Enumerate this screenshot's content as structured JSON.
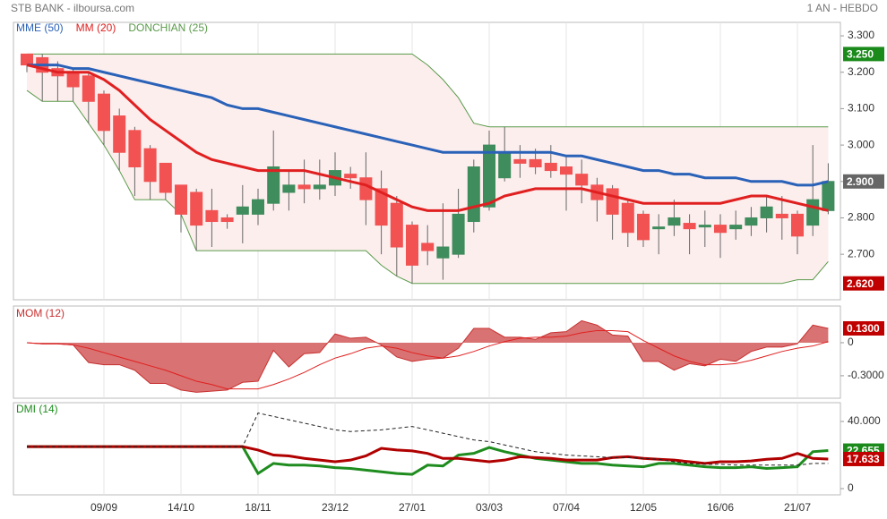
{
  "chart_data": [
    {
      "type": "candlestick",
      "title": "STB BANK - ilboursa.com",
      "subtitle": "1 AN - HEBDO",
      "categories": [
        null,
        null,
        null,
        null,
        null,
        "09/09",
        null,
        null,
        null,
        null,
        "14/10",
        null,
        null,
        null,
        null,
        "18/11",
        null,
        null,
        null,
        null,
        "23/12",
        null,
        null,
        null,
        null,
        "27/01",
        null,
        null,
        null,
        null,
        "03/03",
        null,
        null,
        null,
        null,
        "07/04",
        null,
        null,
        null,
        null,
        "12/05",
        null,
        null,
        null,
        null,
        "16/06",
        null,
        null,
        null,
        null,
        "21/07",
        null,
        null
      ],
      "open": [
        3.25,
        3.24,
        3.21,
        3.2,
        3.19,
        3.14,
        3.08,
        3.04,
        2.99,
        2.95,
        2.89,
        2.87,
        2.82,
        2.8,
        2.81,
        2.81,
        2.84,
        2.87,
        2.89,
        2.88,
        2.89,
        2.92,
        2.91,
        2.88,
        2.84,
        2.78,
        2.73,
        2.69,
        2.7,
        2.79,
        2.83,
        2.91,
        2.96,
        2.96,
        2.95,
        2.94,
        2.92,
        2.89,
        2.88,
        2.84,
        2.81,
        2.77,
        2.78,
        2.785,
        2.775,
        2.78,
        2.77,
        2.78,
        2.8,
        2.81,
        2.81,
        2.78,
        2.82
      ],
      "high": [
        3.25,
        3.25,
        3.23,
        3.21,
        3.2,
        3.15,
        3.1,
        3.05,
        3.0,
        2.95,
        2.89,
        2.88,
        2.88,
        2.81,
        2.89,
        2.88,
        3.04,
        2.93,
        2.96,
        2.96,
        2.98,
        2.94,
        2.98,
        2.93,
        2.86,
        2.79,
        2.78,
        2.84,
        2.88,
        2.96,
        3.04,
        3.05,
        3.0,
        2.99,
        3.0,
        2.97,
        2.96,
        2.91,
        2.89,
        2.85,
        2.82,
        2.81,
        2.85,
        2.81,
        2.82,
        2.81,
        2.82,
        2.83,
        2.86,
        2.86,
        2.82,
        3.0,
        2.95
      ],
      "low": [
        3.2,
        3.12,
        3.12,
        3.12,
        3.06,
        3.0,
        2.93,
        2.86,
        2.85,
        2.85,
        2.76,
        2.71,
        2.72,
        2.77,
        2.73,
        2.78,
        2.82,
        2.82,
        2.84,
        2.85,
        2.86,
        2.88,
        2.78,
        2.7,
        2.64,
        2.62,
        2.67,
        2.63,
        2.69,
        2.76,
        2.82,
        2.9,
        2.91,
        2.92,
        2.91,
        2.82,
        2.84,
        2.79,
        2.74,
        2.72,
        2.72,
        2.7,
        2.75,
        2.7,
        2.72,
        2.69,
        2.74,
        2.75,
        2.76,
        2.74,
        2.7,
        2.75,
        2.81
      ],
      "close": [
        3.22,
        3.2,
        3.19,
        3.16,
        3.12,
        3.04,
        2.98,
        2.94,
        2.9,
        2.87,
        2.81,
        2.78,
        2.79,
        2.79,
        2.83,
        2.85,
        2.94,
        2.89,
        2.88,
        2.89,
        2.93,
        2.91,
        2.85,
        2.78,
        2.72,
        2.67,
        2.71,
        2.72,
        2.81,
        2.94,
        3.0,
        2.98,
        2.95,
        2.94,
        2.93,
        2.92,
        2.89,
        2.85,
        2.81,
        2.76,
        2.74,
        2.775,
        2.8,
        2.77,
        2.78,
        2.76,
        2.78,
        2.8,
        2.83,
        2.8,
        2.75,
        2.85,
        2.9
      ],
      "up_color": "#3f8c5c",
      "down_color": "#f25252",
      "series": [
        {
          "name": "MME (50)",
          "color": "#2a62b8",
          "values": [
            3.22,
            3.22,
            3.22,
            3.21,
            3.21,
            3.2,
            3.19,
            3.18,
            3.17,
            3.16,
            3.15,
            3.14,
            3.13,
            3.11,
            3.1,
            3.1,
            3.09,
            3.08,
            3.07,
            3.06,
            3.05,
            3.04,
            3.03,
            3.02,
            3.01,
            3.0,
            2.99,
            2.98,
            2.98,
            2.98,
            2.98,
            2.98,
            2.98,
            2.98,
            2.98,
            2.97,
            2.97,
            2.96,
            2.95,
            2.94,
            2.93,
            2.93,
            2.92,
            2.92,
            2.91,
            2.91,
            2.91,
            2.9,
            2.9,
            2.9,
            2.89,
            2.89,
            2.9
          ]
        },
        {
          "name": "MM (20)",
          "color": "#e02020",
          "values": [
            3.22,
            3.21,
            3.2,
            3.2,
            3.2,
            3.18,
            3.15,
            3.11,
            3.07,
            3.04,
            3.01,
            2.98,
            2.96,
            2.95,
            2.94,
            2.93,
            2.93,
            2.93,
            2.93,
            2.92,
            2.91,
            2.9,
            2.89,
            2.87,
            2.85,
            2.83,
            2.82,
            2.82,
            2.82,
            2.83,
            2.84,
            2.86,
            2.87,
            2.88,
            2.88,
            2.88,
            2.88,
            2.87,
            2.86,
            2.85,
            2.84,
            2.84,
            2.84,
            2.84,
            2.84,
            2.84,
            2.85,
            2.86,
            2.86,
            2.85,
            2.84,
            2.83,
            2.82
          ]
        },
        {
          "name": "DONCHIAN (25)",
          "color": "#5a9a4a",
          "fill": "#fdeeee",
          "upper": [
            3.25,
            3.25,
            3.25,
            3.25,
            3.25,
            3.25,
            3.25,
            3.25,
            3.25,
            3.25,
            3.25,
            3.25,
            3.25,
            3.25,
            3.25,
            3.25,
            3.25,
            3.25,
            3.25,
            3.25,
            3.25,
            3.25,
            3.25,
            3.25,
            3.25,
            3.25,
            3.22,
            3.18,
            3.13,
            3.06,
            3.05,
            3.05,
            3.05,
            3.05,
            3.05,
            3.05,
            3.05,
            3.05,
            3.05,
            3.05,
            3.05,
            3.05,
            3.05,
            3.05,
            3.05,
            3.05,
            3.05,
            3.05,
            3.05,
            3.05,
            3.05,
            3.05,
            3.05
          ],
          "lower": [
            3.15,
            3.12,
            3.12,
            3.12,
            3.06,
            3.0,
            2.93,
            2.85,
            2.85,
            2.85,
            2.81,
            2.71,
            2.71,
            2.71,
            2.71,
            2.71,
            2.71,
            2.71,
            2.71,
            2.71,
            2.71,
            2.71,
            2.71,
            2.67,
            2.64,
            2.62,
            2.62,
            2.62,
            2.62,
            2.62,
            2.62,
            2.62,
            2.62,
            2.62,
            2.62,
            2.62,
            2.62,
            2.62,
            2.62,
            2.62,
            2.62,
            2.62,
            2.62,
            2.62,
            2.62,
            2.62,
            2.62,
            2.62,
            2.62,
            2.62,
            2.63,
            2.63,
            2.68
          ]
        }
      ],
      "ylim": [
        2.575,
        3.337
      ],
      "yticks": [
        {
          "value": 3.3,
          "label": "3.300"
        },
        {
          "value": 3.2,
          "label": "3.200"
        },
        {
          "value": 3.1,
          "label": "3.100"
        },
        {
          "value": 3.0,
          "label": "3.000"
        },
        {
          "value": 2.9,
          "label": "2.900"
        },
        {
          "value": 2.8,
          "label": "2.800"
        },
        {
          "value": 2.7,
          "label": "2.700"
        }
      ],
      "last_labels": [
        {
          "value": 3.25,
          "label": "3.250",
          "color": "#1a8a1a"
        },
        {
          "value": 2.9,
          "label": "2.900",
          "color": "#666666"
        },
        {
          "value": 2.62,
          "label": "2.620",
          "color": "#c00000"
        }
      ]
    },
    {
      "type": "area",
      "title": "MOM (12)",
      "series": [
        {
          "color": "#c83030",
          "fill": "#d97272",
          "values": [
            0,
            -0.01,
            -0.01,
            -0.02,
            -0.18,
            -0.2,
            -0.2,
            -0.25,
            -0.37,
            -0.37,
            -0.43,
            -0.45,
            -0.44,
            -0.43,
            -0.36,
            -0.35,
            -0.07,
            -0.22,
            -0.1,
            -0.09,
            0.08,
            0.04,
            0.05,
            -0.02,
            -0.13,
            -0.17,
            -0.15,
            -0.14,
            -0.05,
            0.13,
            0.13,
            0.05,
            0.05,
            0.03,
            0.09,
            0.1,
            0.2,
            0.16,
            0.07,
            0.06,
            -0.17,
            -0.17,
            -0.25,
            -0.19,
            -0.21,
            -0.15,
            -0.17,
            -0.08,
            -0.04,
            -0.04,
            -0.01,
            0.16,
            0.13
          ]
        },
        {
          "color": "#e02020",
          "values": [
            0,
            -0.01,
            -0.01,
            -0.02,
            -0.05,
            -0.09,
            -0.13,
            -0.17,
            -0.21,
            -0.25,
            -0.3,
            -0.35,
            -0.38,
            -0.42,
            -0.42,
            -0.42,
            -0.38,
            -0.33,
            -0.27,
            -0.2,
            -0.14,
            -0.1,
            -0.05,
            -0.03,
            -0.05,
            -0.09,
            -0.12,
            -0.14,
            -0.12,
            -0.08,
            -0.03,
            0.01,
            0.04,
            0.05,
            0.05,
            0.06,
            0.09,
            0.11,
            0.11,
            0.1,
            0.02,
            -0.05,
            -0.12,
            -0.17,
            -0.2,
            -0.2,
            -0.19,
            -0.16,
            -0.12,
            -0.08,
            -0.05,
            -0.03,
            0.01
          ]
        }
      ],
      "ylim": [
        -0.504,
        0.333
      ],
      "yticks": [
        0,
        {
          "value": -0.3,
          "label": "-0.3000"
        }
      ],
      "last_labels": [
        {
          "value": 0.13,
          "label": "0.1300",
          "color": "#c00000"
        }
      ]
    },
    {
      "type": "line",
      "title": "DMI (14)",
      "series": [
        {
          "color": "#1e8c1e",
          "values": [
            25,
            25,
            25,
            25,
            25,
            25,
            25,
            25,
            25,
            25,
            25,
            25,
            25,
            25,
            25,
            9,
            15,
            14,
            14,
            13.5,
            12.5,
            12,
            11,
            10,
            9,
            8.5,
            14,
            13.5,
            20,
            21,
            24.5,
            22,
            20,
            18,
            17,
            16,
            15,
            15,
            14,
            13.5,
            13,
            15,
            15,
            14,
            13,
            12.5,
            12.5,
            13,
            12,
            12.5,
            13,
            22,
            22.655
          ]
        },
        {
          "color": "#b00000",
          "values": [
            25,
            25,
            25,
            25,
            25,
            25,
            25,
            25,
            25,
            25,
            25,
            25,
            25,
            25,
            25,
            23,
            20,
            19.5,
            18,
            17,
            16,
            17,
            19.5,
            24,
            23,
            22.5,
            21,
            18,
            18,
            17,
            16,
            17,
            19,
            18.5,
            18,
            17,
            17,
            17,
            18.5,
            19,
            18,
            17.5,
            17,
            16,
            15,
            16,
            16,
            16.5,
            17.5,
            18,
            21,
            18,
            17.633
          ]
        },
        {
          "color": "#222222",
          "dashed": true,
          "values": [
            25,
            25,
            25,
            25,
            25,
            25,
            25,
            25,
            25,
            25,
            25,
            25,
            25,
            25,
            25,
            45,
            43,
            41,
            39,
            37,
            35,
            34,
            34.5,
            35,
            36,
            37,
            35,
            33,
            31,
            29,
            28,
            26,
            24,
            22,
            21,
            20,
            19.5,
            19,
            18.5,
            18.5,
            18,
            17.5,
            16,
            15,
            14.5,
            14.5,
            14,
            14,
            14,
            14,
            14,
            15,
            15
          ]
        }
      ],
      "ylim": [
        -3.7,
        51.2
      ],
      "yticks": [
        {
          "value": 40,
          "label": "40.000"
        },
        0
      ],
      "last_labels": [
        {
          "value": 22.655,
          "label": "22.655",
          "color": "#1a8a1a"
        },
        {
          "value": 17.633,
          "label": "17.633",
          "color": "#c00000"
        }
      ]
    }
  ]
}
